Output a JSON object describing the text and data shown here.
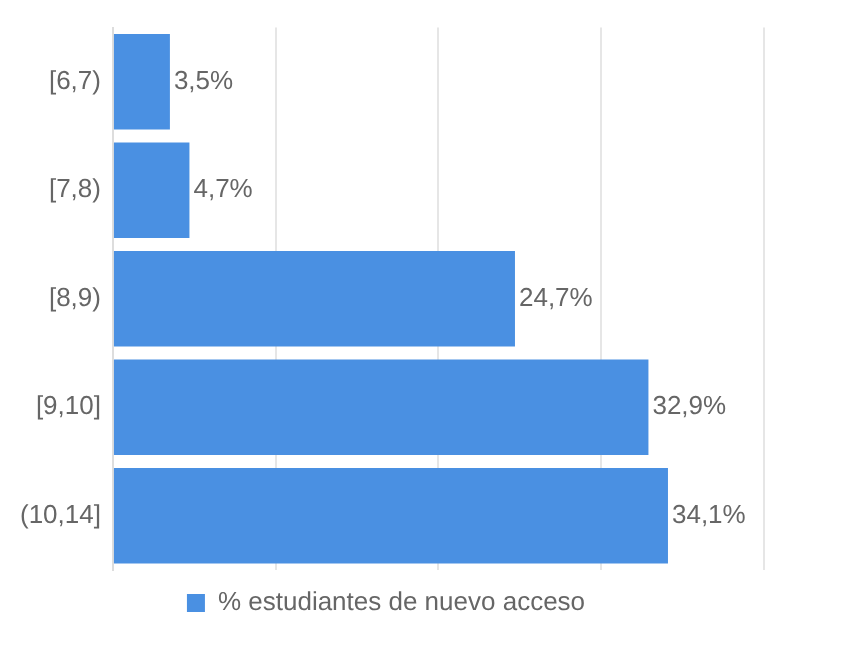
{
  "chart_data": {
    "type": "bar",
    "orientation": "horizontal",
    "categories": [
      "[6,7)",
      "[7,8)",
      "[8,9)",
      "[9,10]",
      "(10,14]"
    ],
    "series": [
      {
        "name": "% estudiantes de nuevo acceso",
        "color": "#4a90e2",
        "values": [
          3.5,
          4.7,
          24.7,
          32.9,
          34.1
        ],
        "value_labels": [
          "3,5%",
          "4,7%",
          "24,7%",
          "32,9%",
          "34,1%"
        ]
      }
    ],
    "tick_labels": "y",
    "grid": "x",
    "legend": "bottom"
  }
}
